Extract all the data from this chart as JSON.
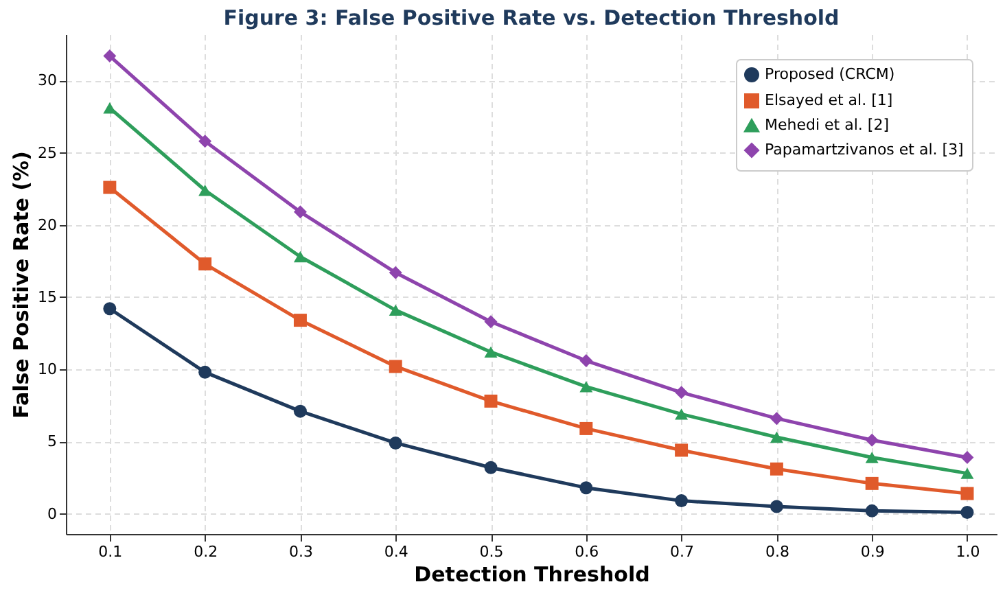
{
  "chart_data": {
    "type": "line",
    "title": "Figure 3: False Positive Rate vs. Detection Threshold",
    "xlabel": "Detection Threshold",
    "ylabel": "False Positive Rate (%)",
    "x": [
      0.1,
      0.2,
      0.3,
      0.4,
      0.5,
      0.6,
      0.7,
      0.8,
      0.9,
      1.0
    ],
    "series": [
      {
        "name": "Proposed (CRCM)",
        "color": "#1f3a5c",
        "marker": "circle",
        "values": [
          14.2,
          9.8,
          7.1,
          4.9,
          3.2,
          1.8,
          0.9,
          0.5,
          0.2,
          0.1
        ]
      },
      {
        "name": "Elsayed et al. [1]",
        "color": "#e05a2b",
        "marker": "square",
        "values": [
          22.6,
          17.3,
          13.4,
          10.2,
          7.8,
          5.9,
          4.4,
          3.1,
          2.1,
          1.4
        ]
      },
      {
        "name": "Mehedi et al. [2]",
        "color": "#2e9e5b",
        "marker": "triangle",
        "values": [
          28.1,
          22.4,
          17.8,
          14.1,
          11.2,
          8.8,
          6.9,
          5.3,
          3.9,
          2.8
        ]
      },
      {
        "name": "Papamartzivanos et al. [3]",
        "color": "#8e44ad",
        "marker": "diamond",
        "values": [
          31.7,
          25.8,
          20.9,
          16.7,
          13.3,
          10.6,
          8.4,
          6.6,
          5.1,
          3.9
        ]
      }
    ],
    "xlim": [
      0.054,
      1.031
    ],
    "ylim": [
      -1.4,
      33.2
    ],
    "xticks": [
      0.1,
      0.2,
      0.3,
      0.4,
      0.5,
      0.6,
      0.7,
      0.8,
      0.9,
      {
        "value": 1,
        "label": "1.0"
      }
    ],
    "yticks": [
      0,
      5,
      10,
      15,
      20,
      25,
      30
    ],
    "grid": true,
    "legend": "top right",
    "line_style": "solid"
  }
}
